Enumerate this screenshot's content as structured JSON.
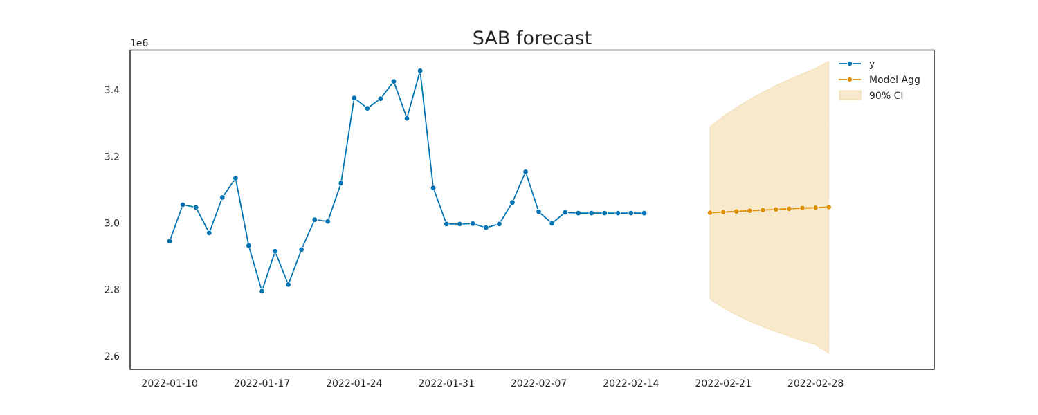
{
  "chart_data": {
    "type": "line",
    "title": "SAB forecast",
    "xlabel": "",
    "ylabel": "",
    "y_offset_label": "1e6",
    "ylim": [
      2.56,
      3.52
    ],
    "y_scale": 1000000,
    "yticks": [
      2.6,
      2.8,
      3.0,
      3.2,
      3.4
    ],
    "xticks": [
      "2022-01-10",
      "2022-01-17",
      "2022-01-24",
      "2022-01-31",
      "2022-02-07",
      "2022-02-14",
      "2022-02-21",
      "2022-02-28"
    ],
    "xlim": [
      "2022-01-07",
      "2022-03-09"
    ],
    "grid": false,
    "legend_position": "top-right",
    "colors": {
      "history": "#0173b2",
      "forecast": "#de8f05",
      "ci_fill": "#de8f05"
    },
    "series": [
      {
        "name": "y",
        "x": [
          "2022-01-10",
          "2022-01-11",
          "2022-01-12",
          "2022-01-13",
          "2022-01-14",
          "2022-01-15",
          "2022-01-16",
          "2022-01-17",
          "2022-01-18",
          "2022-01-19",
          "2022-01-20",
          "2022-01-21",
          "2022-01-22",
          "2022-01-23",
          "2022-01-24",
          "2022-01-25",
          "2022-01-26",
          "2022-01-27",
          "2022-01-28",
          "2022-01-29",
          "2022-01-30",
          "2022-01-31",
          "2022-02-01",
          "2022-02-02",
          "2022-02-03",
          "2022-02-04",
          "2022-02-05",
          "2022-02-06",
          "2022-02-07",
          "2022-02-08",
          "2022-02-09",
          "2022-02-10",
          "2022-02-11",
          "2022-02-12",
          "2022-02-13",
          "2022-02-14",
          "2022-02-15"
        ],
        "y": [
          2.945,
          3.055,
          3.047,
          2.97,
          3.077,
          3.135,
          2.932,
          2.795,
          2.915,
          2.815,
          2.92,
          3.01,
          3.005,
          3.12,
          3.376,
          3.345,
          3.374,
          3.426,
          3.315,
          3.458,
          3.106,
          2.997,
          2.997,
          2.998,
          2.986,
          2.997,
          3.062,
          3.154,
          3.034,
          2.999,
          3.032,
          3.03,
          3.03,
          3.03,
          3.03,
          3.03,
          3.03
        ]
      },
      {
        "name": "Model Agg",
        "x": [
          "2022-02-20",
          "2022-02-21",
          "2022-02-22",
          "2022-02-23",
          "2022-02-24",
          "2022-02-25",
          "2022-02-26",
          "2022-02-27",
          "2022-02-28",
          "2022-03-01"
        ],
        "y": [
          3.031,
          3.033,
          3.035,
          3.037,
          3.039,
          3.041,
          3.043,
          3.045,
          3.046,
          3.048
        ]
      }
    ],
    "ci": {
      "name": "90% CI",
      "x": [
        "2022-02-20",
        "2022-02-21",
        "2022-02-22",
        "2022-02-23",
        "2022-02-24",
        "2022-02-25",
        "2022-02-26",
        "2022-02-27",
        "2022-02-28",
        "2022-03-01"
      ],
      "lower": [
        2.77,
        2.745,
        2.723,
        2.704,
        2.688,
        2.673,
        2.659,
        2.646,
        2.634,
        2.608
      ],
      "upper": [
        3.29,
        3.321,
        3.348,
        3.372,
        3.394,
        3.414,
        3.432,
        3.449,
        3.465,
        3.487
      ]
    }
  }
}
